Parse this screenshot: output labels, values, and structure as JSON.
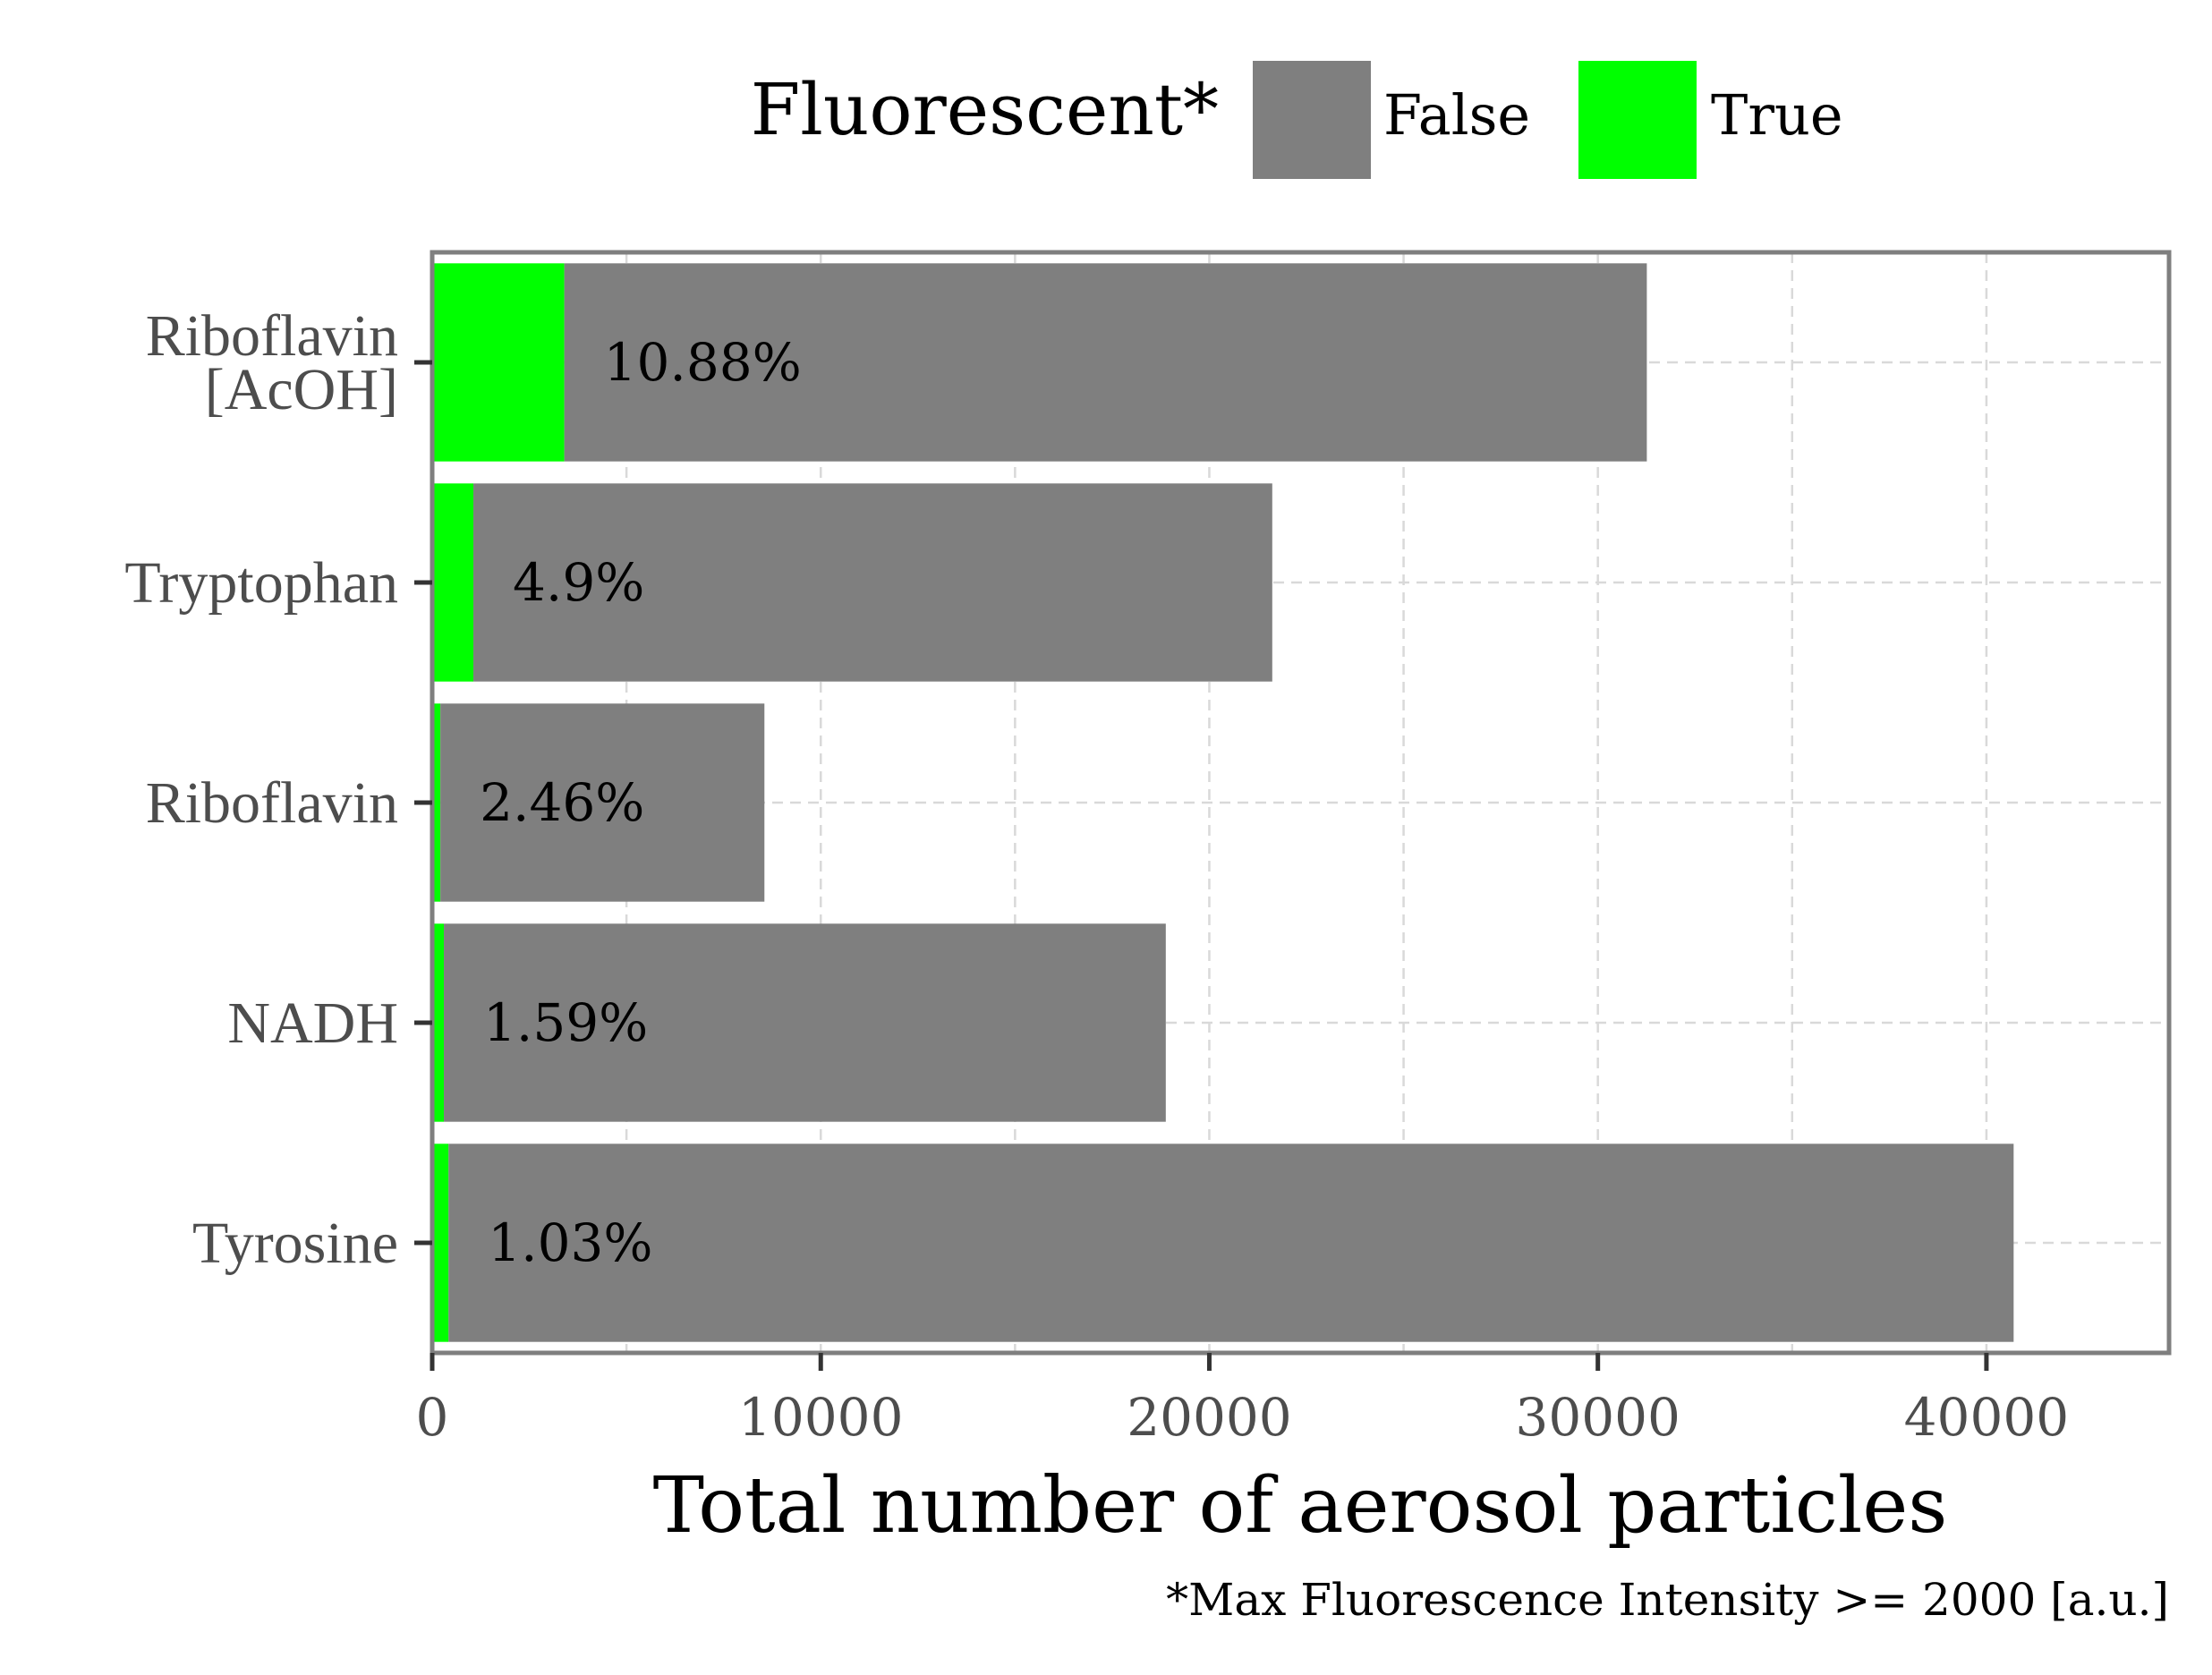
{
  "chart_data": {
    "type": "bar",
    "orientation": "horizontal",
    "stacked": true,
    "categories": [
      "Tyrosine",
      "NADH",
      "Riboflavin",
      "Tryptophan",
      "Riboflavin\n[AcOH]"
    ],
    "series": [
      {
        "name": "True",
        "color": "#00ff00",
        "values": [
          420,
          300,
          210,
          1060,
          3400
        ]
      },
      {
        "name": "False",
        "color": "#7f7f7f",
        "values": [
          40280,
          18580,
          8340,
          20560,
          27860
        ]
      }
    ],
    "data_labels": [
      "1.03%",
      "1.59%",
      "2.46%",
      "4.9%",
      "10.88%"
    ],
    "xlabel": "Total number of aerosol particles",
    "ylabel": "",
    "xlim": [
      0,
      44700
    ],
    "x_ticks": [
      0,
      10000,
      20000,
      30000,
      40000
    ],
    "x_tick_labels": [
      "0",
      "10000",
      "20000",
      "30000",
      "40000"
    ],
    "grid": true,
    "legend": {
      "title": "Fluorescent*",
      "position": "top",
      "entries": [
        {
          "label": "False",
          "color": "#7f7f7f"
        },
        {
          "label": "True",
          "color": "#00ff00"
        }
      ]
    },
    "caption": "*Max Fluorescence Intensity >= 2000 [a.u.]"
  }
}
